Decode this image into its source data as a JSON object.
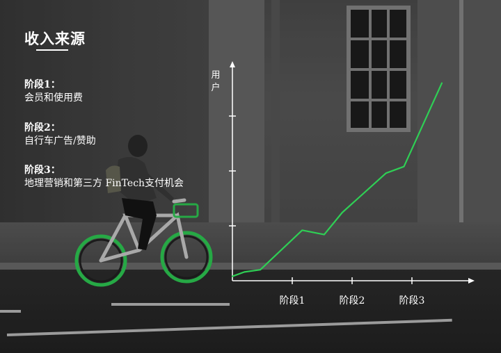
{
  "slide": {
    "title": "收入来源",
    "stages": [
      {
        "heading": "阶段1：",
        "description": "会员和使用费"
      },
      {
        "heading": "阶段2：",
        "description": "自行车广告/赞助"
      },
      {
        "heading": "阶段3：",
        "description": "地理营销和第三方 FinTech支付机会"
      }
    ]
  },
  "colors": {
    "line": "#2fcf55",
    "axis": "#ffffff",
    "text": "#ffffff"
  },
  "chart_data": {
    "type": "line",
    "title": "",
    "ylabel": "用户",
    "xlabel": "",
    "categories": [
      "阶段1",
      "阶段2",
      "阶段3"
    ],
    "xlim": [
      0,
      12
    ],
    "ylim": [
      0,
      10
    ],
    "x_ticks": [
      3,
      6,
      9
    ],
    "y_ticks": [
      2.5,
      5.0,
      7.5
    ],
    "series": [
      {
        "name": "用户",
        "x": [
          0,
          0.6,
          1.4,
          3.5,
          4.6,
          5.5,
          7.7,
          8.6,
          10.5
        ],
        "y": [
          0.2,
          0.4,
          0.5,
          2.3,
          2.1,
          3.1,
          4.9,
          5.2,
          9.0
        ]
      }
    ]
  }
}
